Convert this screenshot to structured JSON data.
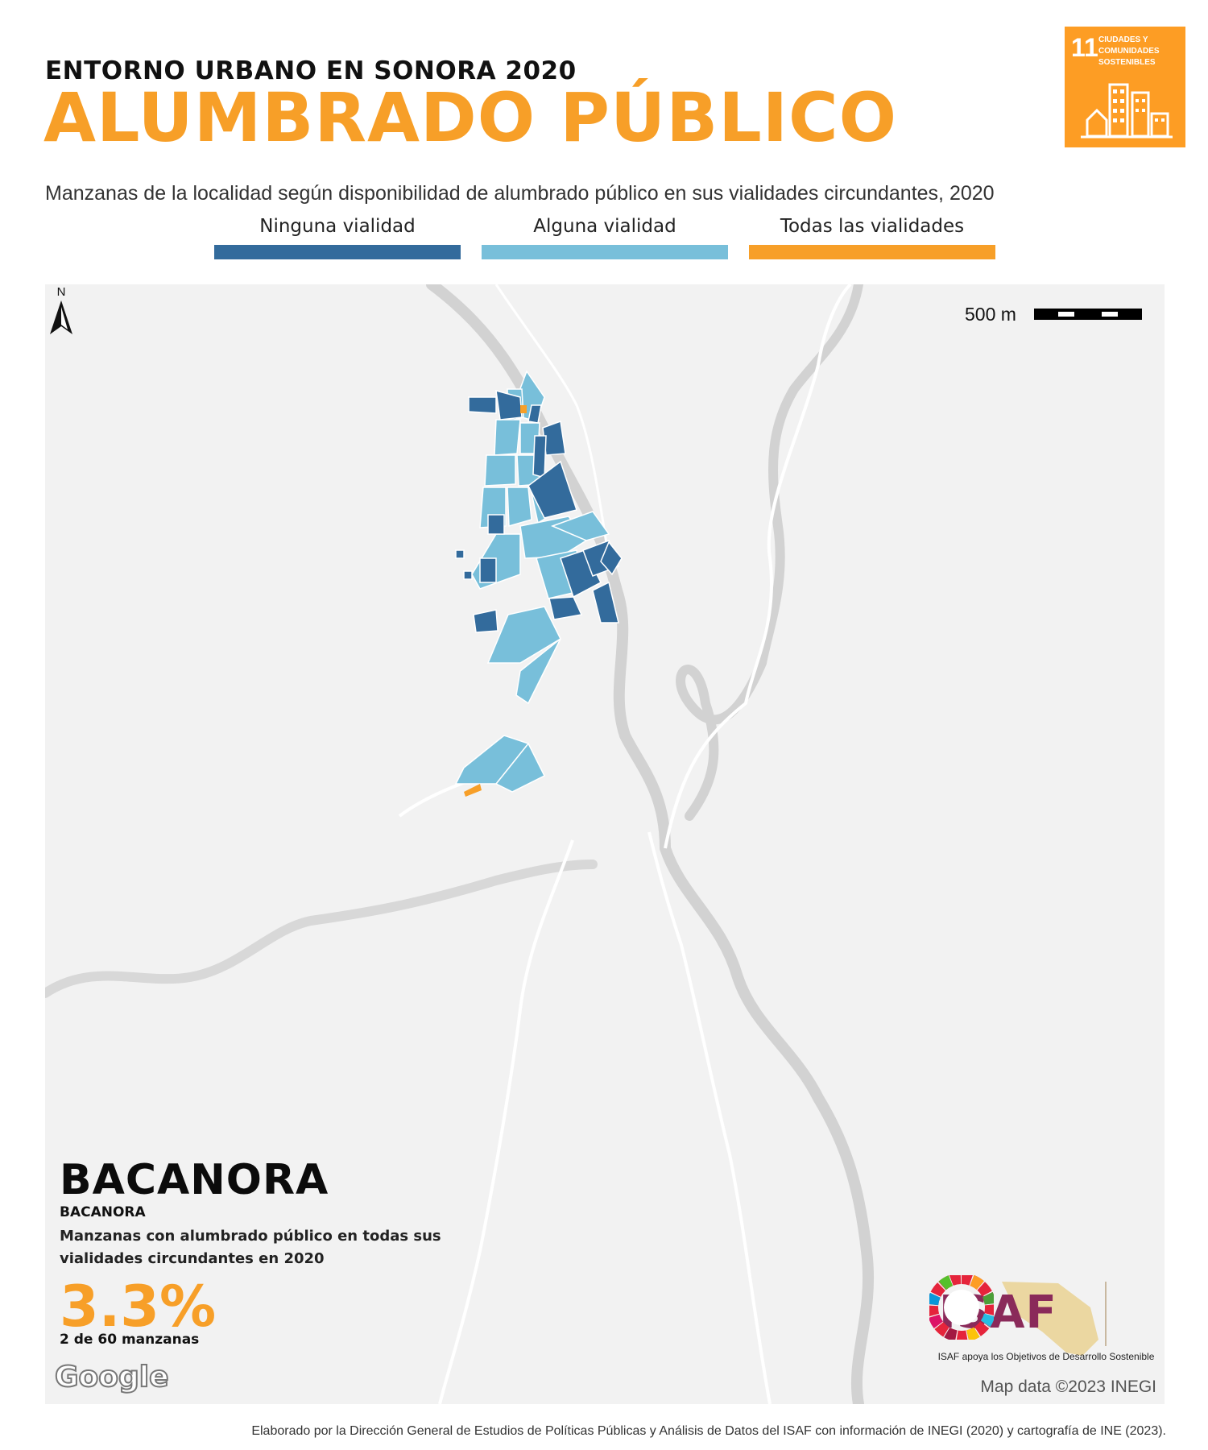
{
  "header": {
    "kicker": "ENTORNO URBANO EN SONORA 2020",
    "title": "ALUMBRADO PÚBLICO",
    "subtitle": "Manzanas de la localidad según disponibilidad de alumbrado público en sus vialidades circundantes, 2020"
  },
  "sdg_badge": {
    "number": "11",
    "label": "CIUDADES Y COMUNIDADES SOSTENIBLES",
    "color": "#fd9d24"
  },
  "legend": [
    {
      "label": "Ninguna vialidad",
      "color": "#336b9c"
    },
    {
      "label": "Alguna vialidad",
      "color": "#78bfda"
    },
    {
      "label": "Todas las vialidades",
      "color": "#f79f28"
    }
  ],
  "map": {
    "scale_label": "500 m",
    "north_label": "N",
    "attribution": "Map data ©2023 INEGI",
    "google_logo": "Google"
  },
  "locality": {
    "name": "BACANORA",
    "municipality": "BACANORA",
    "stat_description": "Manzanas con alumbrado público en todas sus vialidades circundantes en 2020",
    "stat_value": "3.3%",
    "stat_count": "2 de 60 manzanas"
  },
  "isaf": {
    "logo_text": "ISAF",
    "tagline": "ISAF apoya los Objetivos de Desarrollo Sostenible"
  },
  "footer": "Elaborado por la Dirección General de Estudios de Políticas Públicas y Análisis de Datos del ISAF con información de INEGI (2020) y cartografía de INE (2023)."
}
